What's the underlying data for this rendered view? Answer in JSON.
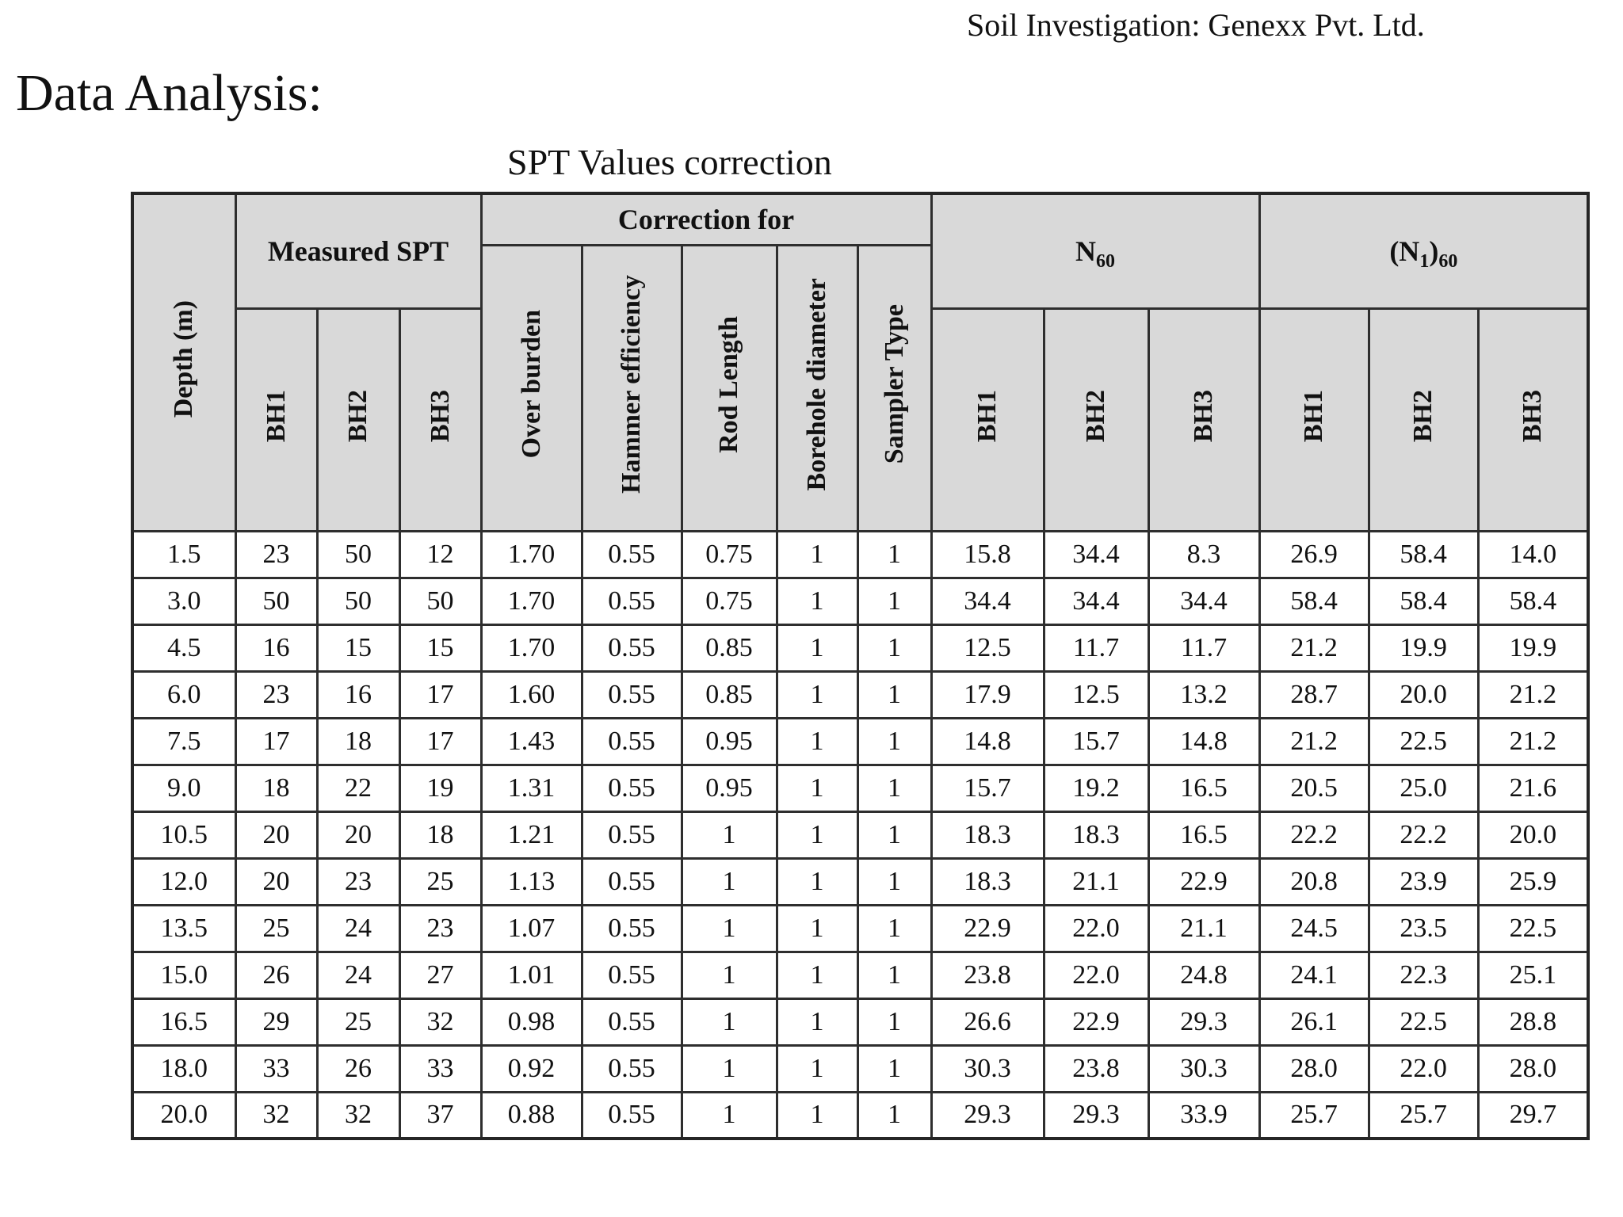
{
  "page": {
    "investigation_label": "Soil Investigation: Genexx Pvt. Ltd.",
    "section_title": "Data Analysis:",
    "table_title": "SPT Values correction"
  },
  "table": {
    "groups": {
      "measured_spt": "Measured SPT",
      "correction_for": "Correction for",
      "n60": {
        "base": "N",
        "sub": "60"
      },
      "n1_60": {
        "p1": "(N",
        "s1": "1",
        "p2": ")",
        "s2": "60"
      }
    },
    "columns": {
      "depth": "Depth (m)",
      "bh": [
        "BH1",
        "BH2",
        "BH3"
      ],
      "corrections": [
        "Over burden",
        "Hammer efficiency",
        "Rod Length",
        "Borehole diameter",
        "Sampler Type"
      ]
    },
    "rows": [
      [
        "1.5",
        "23",
        "50",
        "12",
        "1.70",
        "0.55",
        "0.75",
        "1",
        "1",
        "15.8",
        "34.4",
        "8.3",
        "26.9",
        "58.4",
        "14.0"
      ],
      [
        "3.0",
        "50",
        "50",
        "50",
        "1.70",
        "0.55",
        "0.75",
        "1",
        "1",
        "34.4",
        "34.4",
        "34.4",
        "58.4",
        "58.4",
        "58.4"
      ],
      [
        "4.5",
        "16",
        "15",
        "15",
        "1.70",
        "0.55",
        "0.85",
        "1",
        "1",
        "12.5",
        "11.7",
        "11.7",
        "21.2",
        "19.9",
        "19.9"
      ],
      [
        "6.0",
        "23",
        "16",
        "17",
        "1.60",
        "0.55",
        "0.85",
        "1",
        "1",
        "17.9",
        "12.5",
        "13.2",
        "28.7",
        "20.0",
        "21.2"
      ],
      [
        "7.5",
        "17",
        "18",
        "17",
        "1.43",
        "0.55",
        "0.95",
        "1",
        "1",
        "14.8",
        "15.7",
        "14.8",
        "21.2",
        "22.5",
        "21.2"
      ],
      [
        "9.0",
        "18",
        "22",
        "19",
        "1.31",
        "0.55",
        "0.95",
        "1",
        "1",
        "15.7",
        "19.2",
        "16.5",
        "20.5",
        "25.0",
        "21.6"
      ],
      [
        "10.5",
        "20",
        "20",
        "18",
        "1.21",
        "0.55",
        "1",
        "1",
        "1",
        "18.3",
        "18.3",
        "16.5",
        "22.2",
        "22.2",
        "20.0"
      ],
      [
        "12.0",
        "20",
        "23",
        "25",
        "1.13",
        "0.55",
        "1",
        "1",
        "1",
        "18.3",
        "21.1",
        "22.9",
        "20.8",
        "23.9",
        "25.9"
      ],
      [
        "13.5",
        "25",
        "24",
        "23",
        "1.07",
        "0.55",
        "1",
        "1",
        "1",
        "22.9",
        "22.0",
        "21.1",
        "24.5",
        "23.5",
        "22.5"
      ],
      [
        "15.0",
        "26",
        "24",
        "27",
        "1.01",
        "0.55",
        "1",
        "1",
        "1",
        "23.8",
        "22.0",
        "24.8",
        "24.1",
        "22.3",
        "25.1"
      ],
      [
        "16.5",
        "29",
        "25",
        "32",
        "0.98",
        "0.55",
        "1",
        "1",
        "1",
        "26.6",
        "22.9",
        "29.3",
        "26.1",
        "22.5",
        "28.8"
      ],
      [
        "18.0",
        "33",
        "26",
        "33",
        "0.92",
        "0.55",
        "1",
        "1",
        "1",
        "30.3",
        "23.8",
        "30.3",
        "28.0",
        "22.0",
        "28.0"
      ],
      [
        "20.0",
        "32",
        "32",
        "37",
        "0.88",
        "0.55",
        "1",
        "1",
        "1",
        "29.3",
        "29.3",
        "33.9",
        "25.7",
        "25.7",
        "29.7"
      ]
    ]
  }
}
